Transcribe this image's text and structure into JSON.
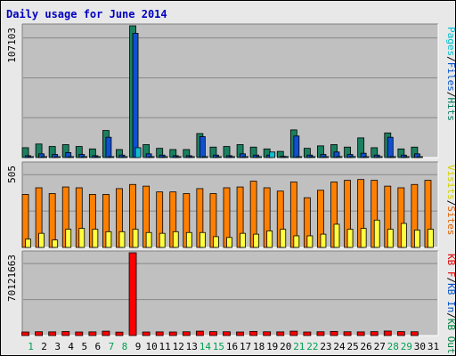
{
  "chart_data": {
    "title": "Daily usage for June 2014",
    "type": "bar",
    "categories": [
      "1",
      "2",
      "3",
      "4",
      "5",
      "6",
      "7",
      "8",
      "9",
      "10",
      "11",
      "12",
      "13",
      "14",
      "15",
      "16",
      "17",
      "18",
      "19",
      "20",
      "21",
      "22",
      "23",
      "24",
      "25",
      "26",
      "27",
      "28",
      "29",
      "30",
      "31"
    ],
    "weekend_days": [
      "1",
      "7",
      "8",
      "14",
      "15",
      "21",
      "22",
      "28",
      "29"
    ],
    "panels": [
      {
        "id": "top",
        "y_max_label": "107103",
        "ylim": [
          0,
          107103
        ],
        "legend": [
          {
            "text": "Pages",
            "color": "#00c0d0"
          },
          {
            "text": "/",
            "color": "#000000"
          },
          {
            "text": "Files",
            "color": "#0050c8"
          },
          {
            "text": "/",
            "color": "#000000"
          },
          {
            "text": "Hits",
            "color": "#007860"
          }
        ],
        "series": [
          {
            "name": "Hits",
            "color": "#1a8060",
            "values": [
              8000,
              11000,
              9000,
              10500,
              9000,
              7000,
              22000,
              6500,
              107103,
              10500,
              7500,
              6500,
              6500,
              19500,
              8500,
              9000,
              10500,
              8500,
              7000,
              5000,
              22500,
              7500,
              9500,
              10500,
              8500,
              16000,
              8000,
              20000,
              7000,
              8500,
              0
            ]
          },
          {
            "name": "Files",
            "color": "#1050d0",
            "values": [
              1500,
              3000,
              2500,
              4000,
              2500,
              1500,
              16500,
              2000,
              101000,
              3000,
              2000,
              1500,
              1500,
              17000,
              2000,
              1500,
              3000,
              2000,
              2000,
              1000,
              17500,
              2000,
              2500,
              4500,
              2500,
              3500,
              2000,
              16500,
              2000,
              3000,
              0
            ]
          },
          {
            "name": "Pages",
            "color": "#10c0d0",
            "values": [
              400,
              700,
              500,
              500,
              700,
              500,
              500,
              300,
              8000,
              500,
              300,
              300,
              500,
              500,
              300,
              400,
              700,
              500,
              4500,
              600,
              500,
              400,
              600,
              800,
              800,
              600,
              400,
              500,
              400,
              600,
              0
            ]
          }
        ]
      },
      {
        "id": "mid",
        "y_max_label": "505",
        "ylim": [
          0,
          505
        ],
        "legend": [
          {
            "text": "Visits",
            "color": "#d0d000"
          },
          {
            "text": "/",
            "color": "#000000"
          },
          {
            "text": "Sites",
            "color": "#e06000"
          }
        ],
        "series": [
          {
            "name": "Sites",
            "color": "#ff8000",
            "values": [
              320,
              360,
              325,
              365,
              360,
              320,
              320,
              355,
              380,
              370,
              335,
              335,
              325,
              355,
              325,
              360,
              365,
              400,
              360,
              340,
              395,
              300,
              345,
              395,
              405,
              410,
              405,
              370,
              360,
              380,
              405
            ]
          },
          {
            "name": "Visits",
            "color": "#ffff40",
            "values": [
              50,
              85,
              45,
              110,
              115,
              110,
              95,
              95,
              110,
              90,
              85,
              95,
              90,
              90,
              65,
              60,
              85,
              80,
              100,
              110,
              70,
              70,
              80,
              140,
              110,
              115,
              165,
              110,
              145,
              105,
              110
            ]
          }
        ]
      },
      {
        "id": "bot",
        "y_max_label": "70121663",
        "ylim": [
          0,
          70121663
        ],
        "legend": [
          {
            "text": "KB F",
            "color": "#e00000"
          },
          {
            "text": "/",
            "color": "#000000"
          },
          {
            "text": "KB In",
            "color": "#0050c8"
          },
          {
            "text": "/",
            "color": "#000000"
          },
          {
            "text": "KB Out",
            "color": "#008040"
          }
        ],
        "series": [
          {
            "name": "KB F",
            "color": "#ff0000",
            "values": [
              3000000,
              3200000,
              3100000,
              3400000,
              3000000,
              3100000,
              3700000,
              2900000,
              70121663,
              3000000,
              3100000,
              3000000,
              3200000,
              3700000,
              3300000,
              3200000,
              3000000,
              3500000,
              3200000,
              3100000,
              3700000,
              3000000,
              3200000,
              3500000,
              3200000,
              3100000,
              3300000,
              3800000,
              3300000,
              3200000,
              0
            ]
          },
          {
            "name": "KB In",
            "color": "#1050d0",
            "values": [
              0,
              0,
              0,
              0,
              0,
              0,
              0,
              0,
              0,
              0,
              0,
              0,
              0,
              0,
              0,
              0,
              0,
              0,
              0,
              0,
              0,
              0,
              0,
              0,
              0,
              0,
              0,
              0,
              0,
              0,
              0
            ]
          },
          {
            "name": "KB Out",
            "color": "#008040",
            "values": [
              0,
              0,
              0,
              0,
              0,
              0,
              0,
              0,
              0,
              0,
              0,
              0,
              0,
              0,
              0,
              0,
              0,
              0,
              0,
              0,
              0,
              0,
              0,
              0,
              0,
              0,
              0,
              0,
              0,
              0,
              0
            ]
          }
        ]
      }
    ],
    "colors": {
      "title": "#0000c0",
      "weekday_label": "#000000",
      "weekend_label": "#00a050",
      "plot_bg": "#c0c0c0",
      "frame_bg": "#e8e8e8"
    }
  }
}
